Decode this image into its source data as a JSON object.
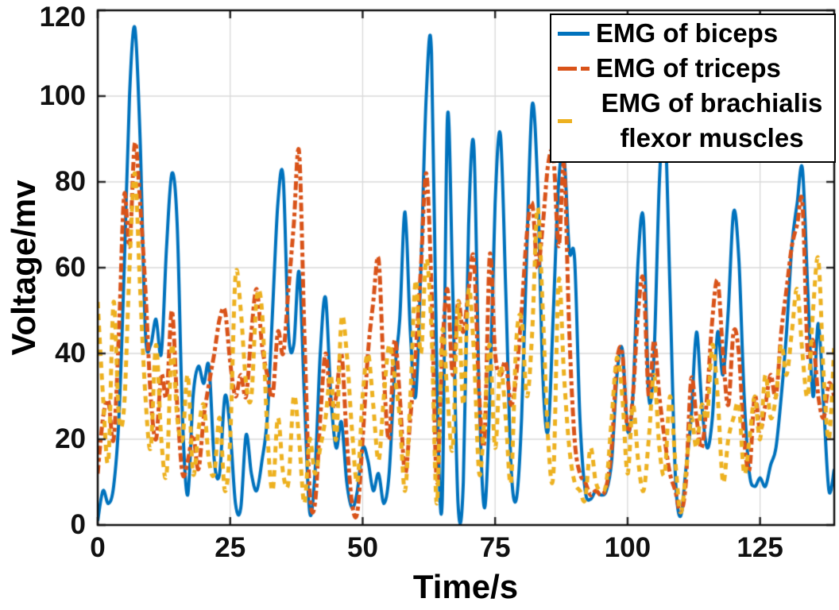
{
  "figure": {
    "background": "#ffffff"
  },
  "axes": {
    "x_label": "Time/s",
    "y_label": "Voltage/mv",
    "x_ticks": [
      0,
      25,
      50,
      75,
      100,
      125
    ],
    "y_ticks": [
      0,
      20,
      40,
      60,
      80,
      100,
      120
    ],
    "grid_color": "#d9d9d9",
    "border_color": "#0f0f0f",
    "tick_color": "#262626"
  },
  "legend": {
    "position": "top-right",
    "entries": [
      {
        "label": "EMG of biceps",
        "color": "#0072BD",
        "style": "solid"
      },
      {
        "label": "EMG of triceps",
        "color": "#D95319",
        "style": "long-short-dash"
      },
      {
        "label_line1": "EMG of brachialis",
        "label_line2": "flexor muscles",
        "color": "#EDB120",
        "style": "short-dash"
      }
    ]
  },
  "chart_data": {
    "type": "line",
    "title": "",
    "xlabel": "Time/s",
    "ylabel": "Voltage/mv",
    "xlim": [
      0,
      139
    ],
    "ylim": [
      0,
      120
    ],
    "grid": "on",
    "legend_position": "top-right",
    "x_start": 0,
    "x_step": 1,
    "n_points": 140,
    "series": [
      {
        "name": "EMG of biceps",
        "color": "#0072BD",
        "style": "solid",
        "line_width": 4,
        "values": [
          1,
          8,
          5,
          9,
          25,
          60,
          100,
          116,
          90,
          45,
          42,
          48,
          40,
          65,
          82,
          70,
          25,
          7,
          30,
          37,
          33,
          37,
          15,
          12,
          30,
          22,
          5,
          4,
          21,
          12,
          8,
          15,
          25,
          50,
          75,
          81,
          45,
          42,
          59,
          30,
          3,
          12,
          40,
          53,
          30,
          18,
          24,
          10,
          4,
          8,
          18,
          15,
          8,
          12,
          5,
          12,
          35,
          48,
          73,
          45,
          30,
          60,
          100,
          110,
          35,
          5,
          95,
          55,
          5,
          10,
          70,
          88,
          30,
          4,
          30,
          75,
          91,
          55,
          14,
          6,
          25,
          65,
          98,
          80,
          35,
          22,
          50,
          80,
          86,
          64,
          62,
          25,
          8,
          6,
          8,
          7,
          8,
          15,
          35,
          41,
          22,
          30,
          62,
          71,
          30,
          40,
          80,
          95,
          55,
          12,
          2,
          13,
          25,
          45,
          28,
          18,
          25,
          45,
          35,
          50,
          73,
          62,
          30,
          12,
          9,
          11,
          9,
          14,
          18,
          30,
          45,
          65,
          75,
          83,
          55,
          30,
          47,
          28,
          8,
          13
        ]
      },
      {
        "name": "EMG of triceps",
        "color": "#D95319",
        "style": "dash-dot",
        "line_width": 5,
        "values": [
          12,
          25,
          29,
          20,
          45,
          77,
          65,
          89,
          75,
          55,
          30,
          20,
          35,
          30,
          50,
          28,
          12,
          15,
          21,
          13,
          25,
          33,
          40,
          48,
          50,
          38,
          30,
          35,
          30,
          45,
          55,
          42,
          35,
          30,
          45,
          40,
          55,
          70,
          87,
          45,
          8,
          5,
          25,
          40,
          28,
          30,
          40,
          20,
          5,
          3,
          20,
          40,
          52,
          62,
          35,
          20,
          43,
          30,
          12,
          25,
          40,
          60,
          82,
          55,
          10,
          40,
          55,
          35,
          52,
          45,
          55,
          62,
          30,
          20,
          63,
          40,
          35,
          38,
          28,
          35,
          50,
          68,
          75,
          60,
          70,
          84,
          86,
          65,
          84,
          45,
          20,
          12,
          10,
          7,
          8,
          7,
          9,
          18,
          38,
          40,
          22,
          30,
          50,
          57,
          30,
          43,
          30,
          20,
          12,
          8,
          3,
          10,
          34,
          25,
          18,
          30,
          48,
          57,
          40,
          28,
          45,
          40,
          20,
          13,
          30,
          22,
          28,
          35,
          30,
          45,
          55,
          65,
          70,
          75,
          40,
          43,
          30,
          25,
          33,
          30
        ]
      },
      {
        "name": "EMG of brachialis flexor muscles",
        "color": "#EDB120",
        "style": "dash",
        "line_width": 5,
        "values": [
          52,
          30,
          15,
          52,
          25,
          28,
          60,
          82,
          55,
          30,
          18,
          42,
          20,
          12,
          42,
          25,
          20,
          35,
          12,
          22,
          28,
          15,
          12,
          25,
          8,
          20,
          58,
          50,
          33,
          30,
          53,
          50,
          22,
          8,
          25,
          12,
          10,
          30,
          20,
          5,
          20,
          12,
          18,
          25,
          35,
          20,
          48,
          40,
          22,
          10,
          30,
          40,
          28,
          15,
          30,
          42,
          35,
          25,
          8,
          30,
          57,
          40,
          62,
          45,
          5,
          45,
          30,
          18,
          52,
          28,
          55,
          40,
          12,
          25,
          42,
          18,
          37,
          25,
          10,
          43,
          48,
          30,
          45,
          74,
          50,
          20,
          12,
          57,
          35,
          18,
          10,
          8,
          6,
          18,
          10,
          8,
          10,
          25,
          39,
          30,
          12,
          28,
          15,
          8,
          20,
          35,
          18,
          12,
          30,
          15,
          3,
          12,
          25,
          18,
          28,
          25,
          42,
          30,
          10,
          20,
          25,
          28,
          12,
          20,
          30,
          20,
          35,
          25,
          30,
          42,
          35,
          45,
          55,
          40,
          30,
          50,
          62,
          35,
          20,
          42
        ]
      }
    ]
  }
}
